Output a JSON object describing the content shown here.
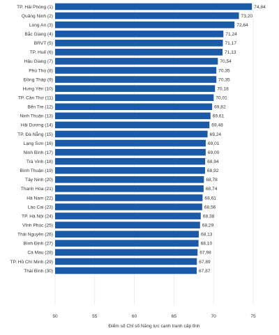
{
  "chart_data": {
    "type": "bar",
    "orientation": "horizontal",
    "categories": [
      "TP. Hải Phòng (1)",
      "Quảng Ninh (2)",
      "Long An (3)",
      "Bắc Giang (4)",
      "BRVT (5)",
      "TP. Huế (6)",
      "Hậu Giang (7)",
      "Phú Thọ (8)",
      "Đồng Tháp (9)",
      "Hưng Yên (10)",
      "TP. Cần Thơ (11)",
      "Bến Tre (12)",
      "Ninh Thuận (13)",
      "Hải Dương (14)",
      "TP. Đà Nẵng (15)",
      "Lạng Sơn (16)",
      "Ninh Bình (17)",
      "Trà Vinh (18)",
      "Bình Thuận (19)",
      "Tây Ninh (20)",
      "Thanh Hóa (21)",
      "Hà Nam (22)",
      "Lào Cai (23)",
      "TP. Hà Nội (24)",
      "Vĩnh Phúc (25)",
      "Thái Nguyên (26)",
      "Bình Định (27)",
      "Cà Mau (28)",
      "TP. Hồ Chí Minh (29)",
      "Thái Bình (30)"
    ],
    "values": [
      74.84,
      73.2,
      72.64,
      71.24,
      71.17,
      71.13,
      70.54,
      70.35,
      70.35,
      70.18,
      70.01,
      69.82,
      69.61,
      69.48,
      69.24,
      69.01,
      69.0,
      68.94,
      68.92,
      68.78,
      68.74,
      68.61,
      68.56,
      68.38,
      68.29,
      68.13,
      68.1,
      67.98,
      67.89,
      67.87
    ],
    "value_labels": [
      "74,84",
      "73,20",
      "72,64",
      "71,24",
      "71,17",
      "71,13",
      "70,54",
      "70,35",
      "70,35",
      "70,18",
      "70,01",
      "69,82",
      "69,61",
      "69,48",
      "69,24",
      "69,01",
      "69,00",
      "68,94",
      "68,92",
      "68,78",
      "68,74",
      "68,61",
      "68,56",
      "68,38",
      "68,29",
      "68,13",
      "68,10",
      "67,98",
      "67,89",
      "67,87"
    ],
    "xlim": [
      50,
      75
    ],
    "xticks": [
      50,
      55,
      60,
      65,
      70,
      75
    ],
    "xlabel": "Điểm số Chỉ số Năng lực cạnh tranh cấp tỉnh",
    "grid": true,
    "bar_color": "#1b5aa6"
  }
}
